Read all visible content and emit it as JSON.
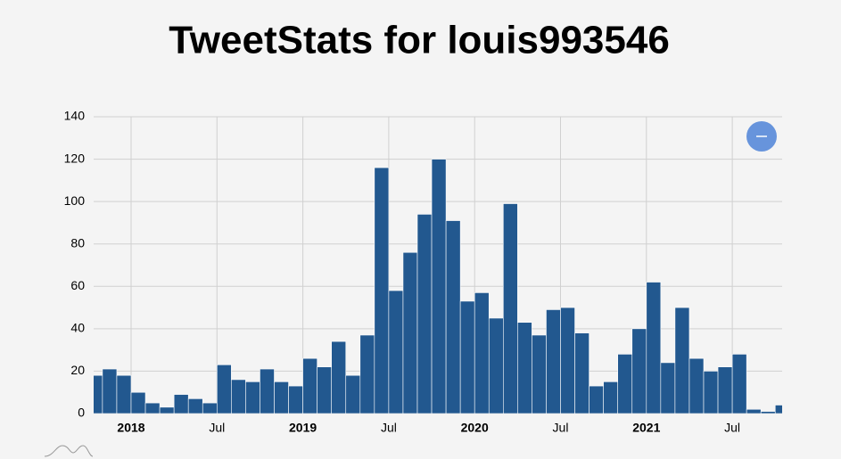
{
  "chart_data": {
    "type": "bar",
    "title": "TweetStats for louis993546",
    "categories": [
      null,
      null,
      null,
      "2018",
      null,
      null,
      null,
      null,
      null,
      "Jul",
      null,
      null,
      null,
      null,
      null,
      "2019",
      null,
      null,
      null,
      null,
      null,
      "Jul",
      null,
      null,
      null,
      null,
      null,
      "2020",
      null,
      null,
      null,
      null,
      null,
      "Jul",
      null,
      null,
      null,
      null,
      null,
      "2021",
      null,
      null,
      null,
      null,
      null,
      "Jul",
      null,
      null,
      null
    ],
    "values": [
      18,
      21,
      18,
      10,
      5,
      3,
      9,
      7,
      5,
      23,
      16,
      15,
      21,
      15,
      13,
      26,
      22,
      34,
      18,
      37,
      116,
      58,
      76,
      94,
      120,
      91,
      53,
      57,
      45,
      99,
      43,
      37,
      49,
      50,
      38,
      13,
      15,
      28,
      40,
      62,
      24,
      50,
      26,
      20,
      22,
      28,
      2,
      1,
      4
    ],
    "color": "#22588f",
    "ylim": [
      0,
      140
    ],
    "yticks": [
      0,
      20,
      40,
      60,
      80,
      100,
      120,
      140
    ],
    "grid": true
  }
}
